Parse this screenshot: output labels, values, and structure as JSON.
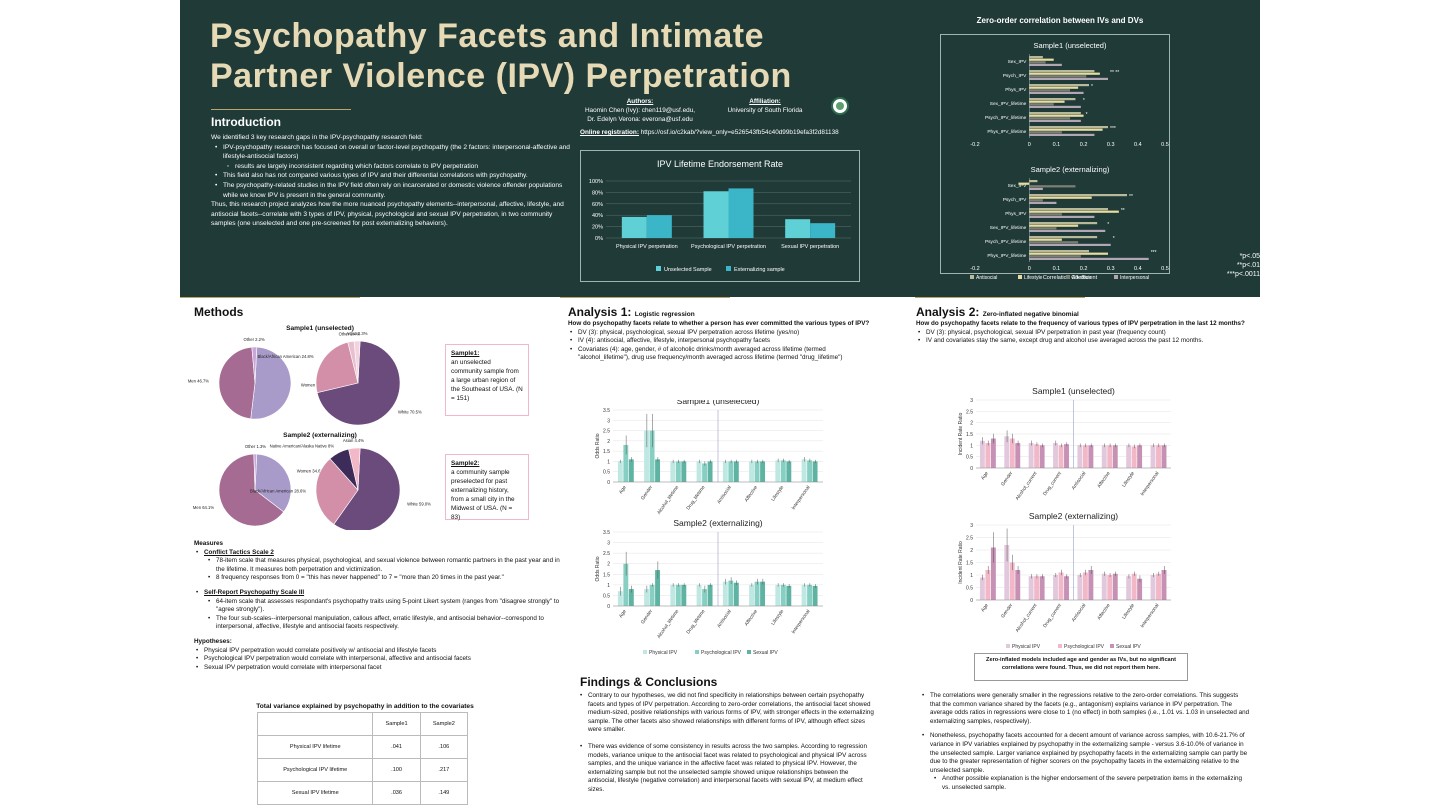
{
  "title": "Psychopathy Facets and Intimate Partner Violence  (IPV) Perpetration",
  "intro": {
    "heading": "Introduction",
    "p1": "We identified 3 key research gaps in the IPV-psychopathy research field:",
    "b1": "IPV-psychopathy research has focused on overall or factor-level psychopathy (the 2 factors: interpersonal-affective and lifestyle-antisocial factors)",
    "b1a": "results are largely inconsistent regarding which factors correlate to IPV perpetration",
    "b2": "This field also has not compared various types of IPV and their differential correlations with psychopathy.",
    "b3": "The psychopathy-related studies in the IPV field often rely on incarcerated or domestic violence offender populations while we know IPV is present in the general community.",
    "p2": "Thus, this research project analyzes how the more nuanced psychopathy elements--interpersonal, affective, lifestyle, and antisocial facets--correlate with 3 types of IPV, physical, psychological and sexual IPV perpetration, in two community samples (one unselected and one pre-screened for post externalizing behaviors)."
  },
  "authors": {
    "label": "Authors:",
    "name1": "Haomin Chen (Ivy): chen119@usf.edu,",
    "name2": "Dr. Edelyn Verona: everona@usf.edu",
    "affil_label": "Affiliation:",
    "affil": "University of South Florida",
    "reg_label": "Online registration:",
    "reg": " https://osf.io/c2kab/?view_only=e526543fb54c40d99b19efa3f2d81138"
  },
  "ipv_chart": {
    "title": "IPV Lifetime Endorsement Rate",
    "yticks": [
      "0%",
      "20%",
      "40%",
      "60%",
      "80%",
      "100%"
    ],
    "categories": [
      "Physical IPV perpetration",
      "Psychological IPV perpetration",
      "Sexual IPV perpetration"
    ],
    "series": [
      {
        "name": "Unselected Sample",
        "values": [
          37,
          82,
          33
        ],
        "color": "#5fd0d6"
      },
      {
        "name": "Externalizing sample",
        "values": [
          40,
          87,
          26
        ],
        "color": "#3bb6c9"
      }
    ],
    "ylim": [
      0,
      100
    ]
  },
  "zero_order": {
    "title": "Zero-order correlation between IVs and DVs",
    "s1_title": "Sample1 (unselected)",
    "s2_title": "Sample2 (externalizing)",
    "categories": [
      "Sex_IPV",
      "Psych_IPV",
      "Phys_IPV",
      "Sex_IPV_lifetime",
      "Psych_IPV_lifetime",
      "Phys_IPV_lifetime"
    ],
    "series_names": [
      "Antisocial",
      "Lifestyle",
      "Affective",
      "Interpersonal"
    ],
    "colors": [
      "#b8b89a",
      "#e8dca0",
      "#7d7f73",
      "#b2a6b5"
    ],
    "s1_values": [
      [
        0.05,
        0.09,
        0.06,
        0.12
      ],
      [
        0.24,
        0.26,
        0.21,
        0.29
      ],
      [
        0.22,
        0.18,
        0.15,
        0.2
      ],
      [
        0.17,
        0.13,
        0.09,
        0.19
      ],
      [
        0.19,
        0.2,
        0.15,
        0.19
      ],
      [
        0.29,
        0.27,
        0.12,
        0.24
      ]
    ],
    "s2_values": [
      [
        0.03,
        -0.04,
        0.17,
        0.05
      ],
      [
        0.36,
        0.23,
        0.05,
        0.1
      ],
      [
        0.29,
        0.33,
        0.12,
        0.24
      ],
      [
        0.25,
        0.18,
        0.1,
        0.28
      ],
      [
        0.25,
        0.12,
        0.18,
        0.3
      ],
      [
        0.22,
        0.29,
        0.19,
        0.44
      ]
    ],
    "s1_marks": [
      "",
      "** **",
      "*",
      "*",
      "*",
      "***"
    ],
    "s2_marks": [
      "",
      "**",
      "**",
      "*",
      "*",
      "***"
    ],
    "xticks": [
      "-0.2",
      "0",
      "0.1",
      "0.2",
      "0.3",
      "0.4",
      "0.5"
    ],
    "xlabel": "Correlation Coefficient",
    "xlim": [
      -0.2,
      0.5
    ]
  },
  "sig_notes": [
    "*p<.05",
    "**p<.01",
    "***p<.0011"
  ],
  "methods": {
    "heading": "Methods",
    "s1_title": "Sample1 (unselected)",
    "s2_title": "Sample2 (externalizing)",
    "s1_box_label": "Sample1:",
    "s1_box_text": "an unselected community sample from a large urban region of the Southeast of USA. (N = 151)",
    "s2_box_label": "Sample2:",
    "s2_box_text": "a community sample preselected for past externalizing history, from a small city in the Midwest of USA. (N = 83)",
    "pie1": {
      "values": [
        51.1,
        46.7,
        2.2
      ],
      "labels": [
        "Women 51.1%",
        "Men 46.7%",
        "Other 2.2%"
      ],
      "colors": [
        "#a99bc9",
        "#a56b93",
        "#c8a8d8"
      ]
    },
    "pie2": {
      "values": [
        70.5,
        24.8,
        2.4,
        2.3
      ],
      "labels": [
        "White 70.5%",
        "Black/African American 24.8%",
        "Other 2.4%",
        "Asian 2.3%"
      ],
      "colors": [
        "#6a4b7c",
        "#d48fa8",
        "#e6c0cf",
        "#f2d3de"
      ]
    },
    "pie3": {
      "values": [
        34.6,
        64.1,
        1.3
      ],
      "labels": [
        "Women 34.6%",
        "Men 64.1%",
        "Other 1.3%"
      ],
      "colors": [
        "#a99bc9",
        "#a56b93",
        "#c8a8d8"
      ]
    },
    "pie4": {
      "values": [
        59.0,
        28.6,
        8.0,
        4.4
      ],
      "labels": [
        "White 59.0%",
        "Black/African American 28.6%",
        "Native American/Alaska Native 8%",
        "Asian 4.4%"
      ],
      "colors": [
        "#6a4b7c",
        "#d48fa8",
        "#3d2c5a",
        "#f2b8c8"
      ]
    },
    "measures": "Measures",
    "cts": "Conflict Tactics Scale 2",
    "cts1": "78-item scale that measures physical, psychological, and sexual violence between romantic partners in the past year and in the lifetime. It measures both perpetration and victimization.",
    "cts2": "8 frequency responses from 0 = \"this has never happened\" to 7 = \"more than 20 times in the past year.\"",
    "srp": "Self-Report Psychopathy Scale III",
    "srp1": "64-item scale that assesses respondant's psychopathy traits using 5-point Likert system (ranges from \"disagree strongly\" to \"agree strongly\").",
    "srp2": "The four sub-scales--interpersonal manipulation, callous affect, erratic lifestyle, and antisocial behavior--correspond to interpersonal, affective, lifestyle and antisocial facets respectively.",
    "hyp": "Hypotheses:",
    "h1": "Physical IPV perpetration would correlate positively w/ antisocial and lifestyle facets",
    "h2": "Psychological IPV perpetration would correlate with interpersonal, affective and antisocial facets",
    "h3": "Sexual IPV perpetration would correlate with interpersonal facet",
    "table_title": "Total variance explained by psychopathy in addition to the covariates",
    "table": {
      "header": [
        "",
        "Sample1",
        "Sample2"
      ],
      "rows": [
        [
          "Physical IPV lifetime",
          ".041",
          ".106"
        ],
        [
          "Psychological IPV lifetime",
          ".100",
          ".217"
        ],
        [
          "Sexual IPV lifetime",
          ".036",
          ".149"
        ]
      ]
    }
  },
  "analysis1": {
    "heading": "Analysis 1:",
    "sub": "Logistic regression",
    "q": "How do psychopathy facets relate to whether a person has ever committed the various types of IPV?",
    "b1": "DV (3): physical, psychological, sexual IPV perpetration across lifetime (yes/no)",
    "b2": "IV (4): antisocial, affective, lifestyle, interpersonal psychopathy facets",
    "b3": "Covariates (4): age, gender, # of alcoholic drinks/month averaged across lifetime (termed \"alcohol_lifetime\"), drug use frequency/month averaged across lifetime (termed \"drug_lifetime\")",
    "s1_title": "Sample1 (unselected)",
    "s2_title": "Sample2 (externalizing)",
    "ylabel": "Odds Ratio",
    "yticks": [
      "0",
      "0.5",
      "1",
      "1.5",
      "2",
      "2.5",
      "3",
      "3.5"
    ],
    "categories": [
      "Age",
      "Gender",
      "Alcohol_lifetime",
      "Drug_lifetime",
      "Antisocial",
      "Affective",
      "Lifestyle",
      "Interpersonal"
    ],
    "legend": [
      "Physical IPV",
      "Psychological IPV",
      "Sexual IPV"
    ],
    "colors": [
      "#bfe8e3",
      "#86cfc2",
      "#5fb3a3"
    ],
    "s1_values": [
      [
        1.0,
        1.8,
        1.1
      ],
      [
        2.5,
        2.5,
        1.1
      ],
      [
        1.0,
        1.0,
        1.0
      ],
      [
        1.0,
        0.9,
        1.0
      ],
      [
        1.0,
        1.0,
        1.0
      ],
      [
        1.0,
        1.0,
        1.0
      ],
      [
        1.05,
        1.05,
        1.0
      ],
      [
        1.1,
        1.05,
        1.0
      ]
    ],
    "s2_values": [
      [
        0.7,
        2.0,
        0.8
      ],
      [
        0.8,
        1.0,
        1.7
      ],
      [
        1.0,
        1.0,
        1.0
      ],
      [
        1.0,
        0.8,
        1.0
      ],
      [
        1.15,
        1.2,
        1.1
      ],
      [
        1.0,
        1.15,
        1.15
      ],
      [
        1.0,
        1.0,
        0.95
      ],
      [
        1.0,
        1.0,
        0.95
      ]
    ],
    "ylim": [
      0,
      3.5
    ]
  },
  "findings": {
    "heading": "Findings & Conclusions",
    "p1": "Contrary to our hypotheses, we did not find specificity in relationships between certain psychopathy facets and types of IPV perpetration. According to zero-order correlations, the antisocial facet showed medium-sized, positive relationships with various forms of IPV, with stronger effects in the externalizing sample. The other facets also showed relationships with different forms of IPV, although effect sizes were smaller.",
    "p2": "There was evidence of some consistency in results across the two samples. According to regression models, variance unique to the antisocial facet was related to psychological and physical IPV across samples, and the unique variance in the affective facet was related to physical IPV. However, the externalizing sample but not the unselected sample showed unique relationships between the antisocial, lifestyle (negative correlation) and interpersonal facets with sexual IPV, at medium effect sizes."
  },
  "analysis2": {
    "heading": "Analysis 2:",
    "sub": "Zero-inflated negative binomial",
    "q": "How do psychopathy facets relate to the frequency of various types of IPV perpetration in the last 12 months?",
    "b1": "DV (3): physical, psychological, sexual IPV perpetration in past year (frequency count)",
    "b2": "IV and covariates stay the same, except drug and alcohol use averaged across the past 12 months.",
    "s1_title": "Sample1 (unselected)",
    "s2_title": "Sample2 (externalizing)",
    "ylabel": "Incident Rate Ratio",
    "yticks": [
      "0",
      "0.5",
      "1",
      "1.5",
      "2",
      "2.5",
      "3"
    ],
    "categories": [
      "Age",
      "Gender",
      "Alcohol_current",
      "Drug_current",
      "Antisocial",
      "Affective",
      "Lifestyle",
      "Interpersonal"
    ],
    "legend": [
      "Physical IPV",
      "Psychological IPV",
      "Sexual IPV"
    ],
    "colors": [
      "#e2c8dc",
      "#f2b8c8",
      "#c790b5"
    ],
    "s1_values": [
      [
        1.2,
        1.1,
        1.3
      ],
      [
        1.4,
        1.3,
        1.1
      ],
      [
        1.1,
        1.05,
        1.0
      ],
      [
        1.1,
        1.0,
        1.05
      ],
      [
        1.0,
        1.0,
        1.0
      ],
      [
        1.0,
        1.0,
        1.0
      ],
      [
        1.0,
        0.95,
        1.0
      ],
      [
        1.0,
        1.0,
        1.0
      ]
    ],
    "s2_values": [
      [
        0.9,
        1.2,
        2.1
      ],
      [
        2.2,
        1.5,
        1.2
      ],
      [
        0.95,
        0.95,
        0.95
      ],
      [
        1.0,
        1.1,
        0.95
      ],
      [
        1.0,
        1.1,
        1.2
      ],
      [
        1.05,
        1.0,
        1.05
      ],
      [
        0.95,
        1.05,
        0.85
      ],
      [
        1.0,
        1.05,
        1.2
      ]
    ],
    "ylim": [
      0,
      3
    ],
    "note": "Zero-inflated models included age and gender as IVs, but no significant correlations were found. Thus, we did not report them here."
  },
  "conclusions2": {
    "b1": "The correlations were generally smaller in the regressions relative to the zero-order correlations. This suggests that the common variance shared by the facets (e.g., antagonism) explains variance in IPV perpetration. The average odds ratios in regressions were close to 1 (no effect) in both samples (i.e., 1.01 vs. 1.03 in unselected and externalizing samples, respectively).",
    "b2": "Nonetheless, psychopathy facets accounted for a decent amount of variance across samples, with 10.6-21.7% of variance in IPV variables explained by psychopathy in the externalizing sample - versus 3.6-10.0% of variance in the unselected sample. Larger variance explained by psychopathy facets in the externalizing sample can partly be due to the greater representation of higher scorers on the psychopathy facets in the externalizing relative to the unselected sample.",
    "b2a": "Another possible explanation is the higher endorsement of the severe perpetration items in the externalizing vs. unselected sample."
  }
}
